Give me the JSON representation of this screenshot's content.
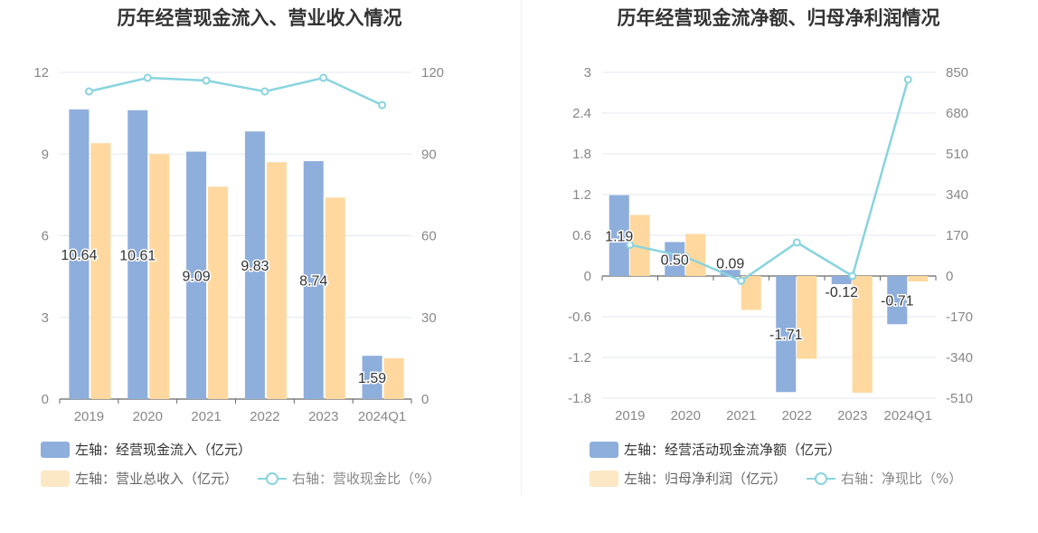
{
  "charts": [
    {
      "title": "历年经营现金流入、营业收入情况",
      "legend": {
        "bar1": "左轴：经营现金流入（亿元）",
        "bar2": "左轴：营业总收入（亿元）",
        "line": "右轴：营收现金比（%）"
      }
    },
    {
      "title": "历年经营现金流净额、归母净利润情况",
      "legend": {
        "bar1": "左轴：经营活动现金流净额（亿元）",
        "bar2": "左轴：归母净利润（亿元）",
        "line": "右轴：净现比（%）"
      }
    }
  ],
  "colors": {
    "bar1": "#8eaedc",
    "bar2": "#fed89e",
    "line": "#88d4df",
    "axis": "#888888",
    "grid": "#e3e7ef"
  },
  "chart_data": [
    {
      "type": "bar",
      "title": "历年经营现金流入、营业收入情况",
      "categories": [
        "2019",
        "2020",
        "2021",
        "2022",
        "2023",
        "2024Q1"
      ],
      "left_axis": {
        "ticks": [
          "0",
          "3",
          "6",
          "9",
          "12"
        ],
        "ylim": [
          0,
          12
        ]
      },
      "right_axis": {
        "ticks": [
          "0",
          "30",
          "60",
          "90",
          "120"
        ],
        "ylim": [
          0,
          120
        ]
      },
      "series": [
        {
          "name": "左轴：经营现金流入（亿元）",
          "axis": "left",
          "kind": "bar",
          "values": [
            10.64,
            10.61,
            9.09,
            9.83,
            8.74,
            1.59
          ],
          "labels": [
            "10.64",
            "10.61",
            "9.09",
            "9.83",
            "8.74",
            "1.59"
          ]
        },
        {
          "name": "左轴：营业总收入（亿元）",
          "axis": "left",
          "kind": "bar",
          "values": [
            9.4,
            9.0,
            7.8,
            8.7,
            7.4,
            1.5
          ]
        },
        {
          "name": "右轴：营收现金比（%）",
          "axis": "right",
          "kind": "line",
          "values": [
            113,
            118,
            117,
            113,
            118,
            108
          ]
        }
      ],
      "legend_position": "bottom-left"
    },
    {
      "type": "bar",
      "title": "历年经营现金流净额、归母净利润情况",
      "categories": [
        "2019",
        "2020",
        "2021",
        "2022",
        "2023",
        "2024Q1"
      ],
      "left_axis": {
        "ticks": [
          "-1.8",
          "-1.2",
          "-0.6",
          "0",
          "0.6",
          "1.2",
          "1.8",
          "2.4",
          "3"
        ],
        "ylim": [
          -1.8,
          3
        ]
      },
      "right_axis": {
        "ticks": [
          "-510",
          "-340",
          "-170",
          "0",
          "170",
          "340",
          "510",
          "680",
          "850"
        ],
        "ylim": [
          -510,
          850
        ]
      },
      "series": [
        {
          "name": "左轴：经营活动现金流净额（亿元）",
          "axis": "left",
          "kind": "bar",
          "values": [
            1.19,
            0.5,
            0.09,
            -1.71,
            -0.12,
            -0.71
          ],
          "labels": [
            "1.19",
            "0.50",
            "0.09",
            "-1.71",
            "-0.12",
            "-0.71"
          ]
        },
        {
          "name": "左轴：归母净利润（亿元）",
          "axis": "left",
          "kind": "bar",
          "values": [
            0.9,
            0.62,
            -0.5,
            -1.22,
            -1.72,
            -0.08
          ]
        },
        {
          "name": "右轴：净现比（%）",
          "axis": "right",
          "kind": "line",
          "values": [
            130,
            80,
            -20,
            140,
            0,
            820
          ]
        }
      ],
      "legend_position": "bottom-left"
    }
  ]
}
